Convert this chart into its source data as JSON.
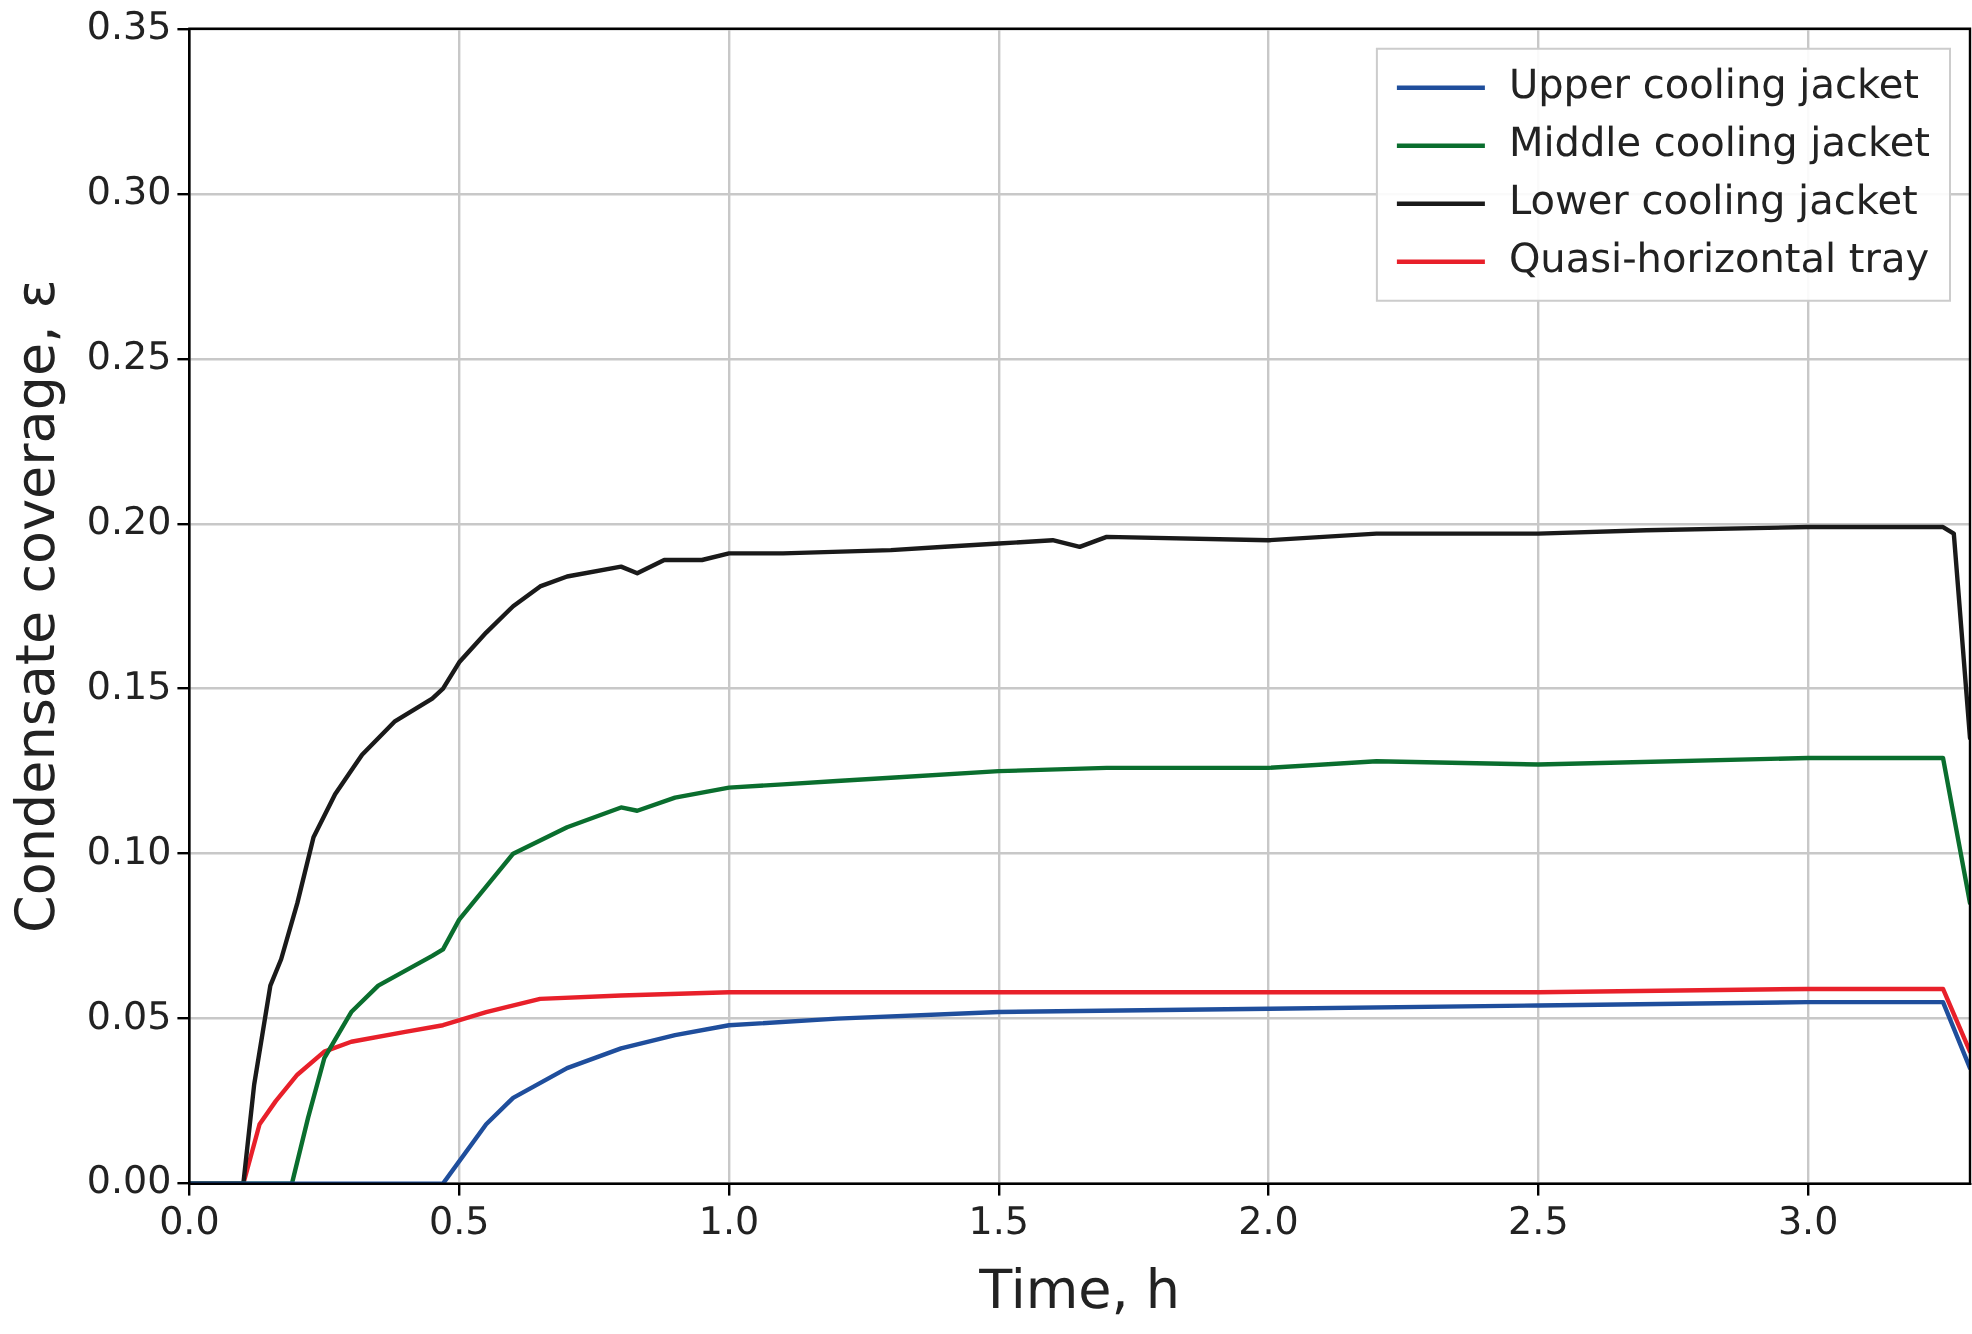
{
  "chart_data": {
    "type": "line",
    "xlabel": "Time, h",
    "ylabel": "Condensate coverage, ε",
    "xlim": [
      0,
      3.3
    ],
    "ylim": [
      0,
      0.35
    ],
    "xticks": [
      {
        "value": 0,
        "label": "0.0"
      },
      {
        "value": 0.5,
        "label": "0.5"
      },
      {
        "value": 1,
        "label": "1.0"
      },
      {
        "value": 1.5,
        "label": "1.5"
      },
      {
        "value": 2,
        "label": "2.0"
      },
      {
        "value": 2.5,
        "label": "2.5"
      },
      {
        "value": 3,
        "label": "3.0"
      }
    ],
    "yticks": [
      {
        "value": 0,
        "label": "0.00"
      },
      {
        "value": 0.05,
        "label": "0.05"
      },
      {
        "value": 0.1,
        "label": "0.10"
      },
      {
        "value": 0.15,
        "label": "0.15"
      },
      {
        "value": 0.2,
        "label": "0.20"
      },
      {
        "value": 0.25,
        "label": "0.25"
      },
      {
        "value": 0.3,
        "label": "0.30"
      },
      {
        "value": 0.35,
        "label": "0.35"
      }
    ],
    "grid": true,
    "legend": "top right",
    "marker": "none",
    "line_style": "solid",
    "series": [
      {
        "name": "Upper cooling jacket",
        "color": "#1f4e9c",
        "x": [
          0,
          0.47,
          0.55,
          0.6,
          0.7,
          0.8,
          0.9,
          1.0,
          1.2,
          1.5,
          2.0,
          2.5,
          3.0,
          3.25,
          3.3
        ],
        "values": [
          0,
          0,
          0.018,
          0.026,
          0.035,
          0.041,
          0.045,
          0.048,
          0.05,
          0.052,
          0.053,
          0.054,
          0.055,
          0.055,
          0.035
        ]
      },
      {
        "name": "Middle cooling jacket",
        "color": "#0a6e2e",
        "x": [
          0,
          0.19,
          0.22,
          0.25,
          0.3,
          0.35,
          0.45,
          0.47,
          0.5,
          0.55,
          0.6,
          0.7,
          0.8,
          0.83,
          0.9,
          1.0,
          1.1,
          1.2,
          1.3,
          1.5,
          1.7,
          2.0,
          2.2,
          2.5,
          3.0,
          3.25,
          3.3
        ],
        "values": [
          0,
          0,
          0.02,
          0.038,
          0.052,
          0.06,
          0.069,
          0.071,
          0.08,
          0.09,
          0.1,
          0.108,
          0.114,
          0.113,
          0.117,
          0.12,
          0.121,
          0.122,
          0.123,
          0.125,
          0.126,
          0.126,
          0.128,
          0.127,
          0.129,
          0.129,
          0.085
        ]
      },
      {
        "name": "Lower cooling jacket",
        "color": "#1a1a1a",
        "x": [
          0,
          0.1,
          0.12,
          0.15,
          0.17,
          0.2,
          0.23,
          0.27,
          0.32,
          0.38,
          0.45,
          0.47,
          0.5,
          0.55,
          0.6,
          0.65,
          0.7,
          0.8,
          0.83,
          0.88,
          0.95,
          1.0,
          1.1,
          1.3,
          1.4,
          1.5,
          1.6,
          1.65,
          1.7,
          2.0,
          2.2,
          2.5,
          2.7,
          3.0,
          3.25,
          3.27,
          3.3
        ],
        "values": [
          0,
          0,
          0.03,
          0.06,
          0.068,
          0.085,
          0.105,
          0.118,
          0.13,
          0.14,
          0.147,
          0.15,
          0.158,
          0.167,
          0.175,
          0.181,
          0.184,
          0.187,
          0.185,
          0.189,
          0.189,
          0.191,
          0.191,
          0.192,
          0.193,
          0.194,
          0.195,
          0.193,
          0.196,
          0.195,
          0.197,
          0.197,
          0.198,
          0.199,
          0.199,
          0.197,
          0.135
        ]
      },
      {
        "name": "Quasi-horizontal tray",
        "color": "#e8202a",
        "x": [
          0,
          0.1,
          0.13,
          0.16,
          0.2,
          0.25,
          0.3,
          0.4,
          0.47,
          0.55,
          0.65,
          0.8,
          1.0,
          1.5,
          2.0,
          2.5,
          3.0,
          3.25,
          3.3
        ],
        "values": [
          0,
          0,
          0.018,
          0.025,
          0.033,
          0.04,
          0.043,
          0.046,
          0.048,
          0.052,
          0.056,
          0.057,
          0.058,
          0.058,
          0.058,
          0.058,
          0.059,
          0.059,
          0.04
        ]
      }
    ]
  }
}
